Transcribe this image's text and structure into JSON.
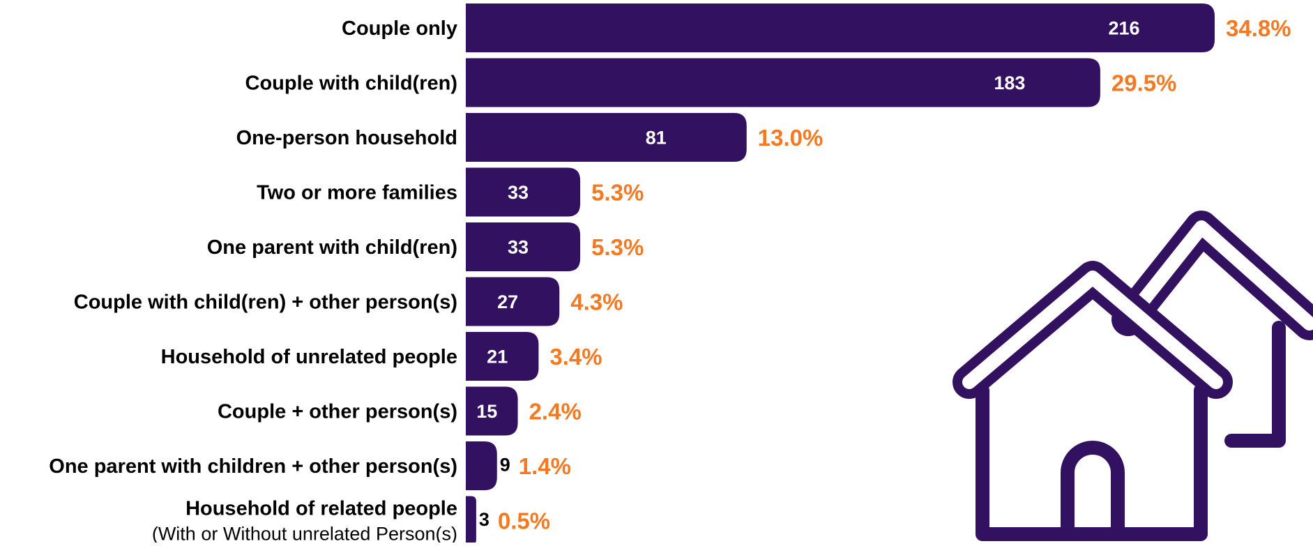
{
  "chart_data": {
    "type": "bar",
    "orientation": "horizontal",
    "categories": [
      "Couple only",
      "Couple with child(ren)",
      "One-person household",
      "Two or more families",
      "One parent with child(ren)",
      "Couple with child(ren) + other person(s)",
      "Household of unrelated people",
      "Couple + other person(s)",
      "One parent with children + other person(s)",
      "Household of related people"
    ],
    "category_sublabels": [
      "",
      "",
      "",
      "",
      "",
      "",
      "",
      "",
      "",
      "(With or Without unrelated Person(s)"
    ],
    "values": [
      216,
      183,
      81,
      33,
      33,
      27,
      21,
      15,
      9,
      3
    ],
    "percent_labels": [
      "34.8%",
      "29.5%",
      "13.0%",
      "5.3%",
      "5.3%",
      "4.3%",
      "3.4%",
      "2.4%",
      "1.4%",
      "0.5%"
    ],
    "xlim": [
      0,
      216
    ],
    "grid": false,
    "legend": "none",
    "title": "",
    "xlabel": "",
    "ylabel": ""
  },
  "colors": {
    "bar": "#321160",
    "value_text_inside": "#ffffff",
    "value_text_outside": "#000000",
    "percent_text": "#f47920",
    "category_text": "#000000",
    "icon": "#321160"
  },
  "decoration": {
    "icon": "houses-icon"
  }
}
